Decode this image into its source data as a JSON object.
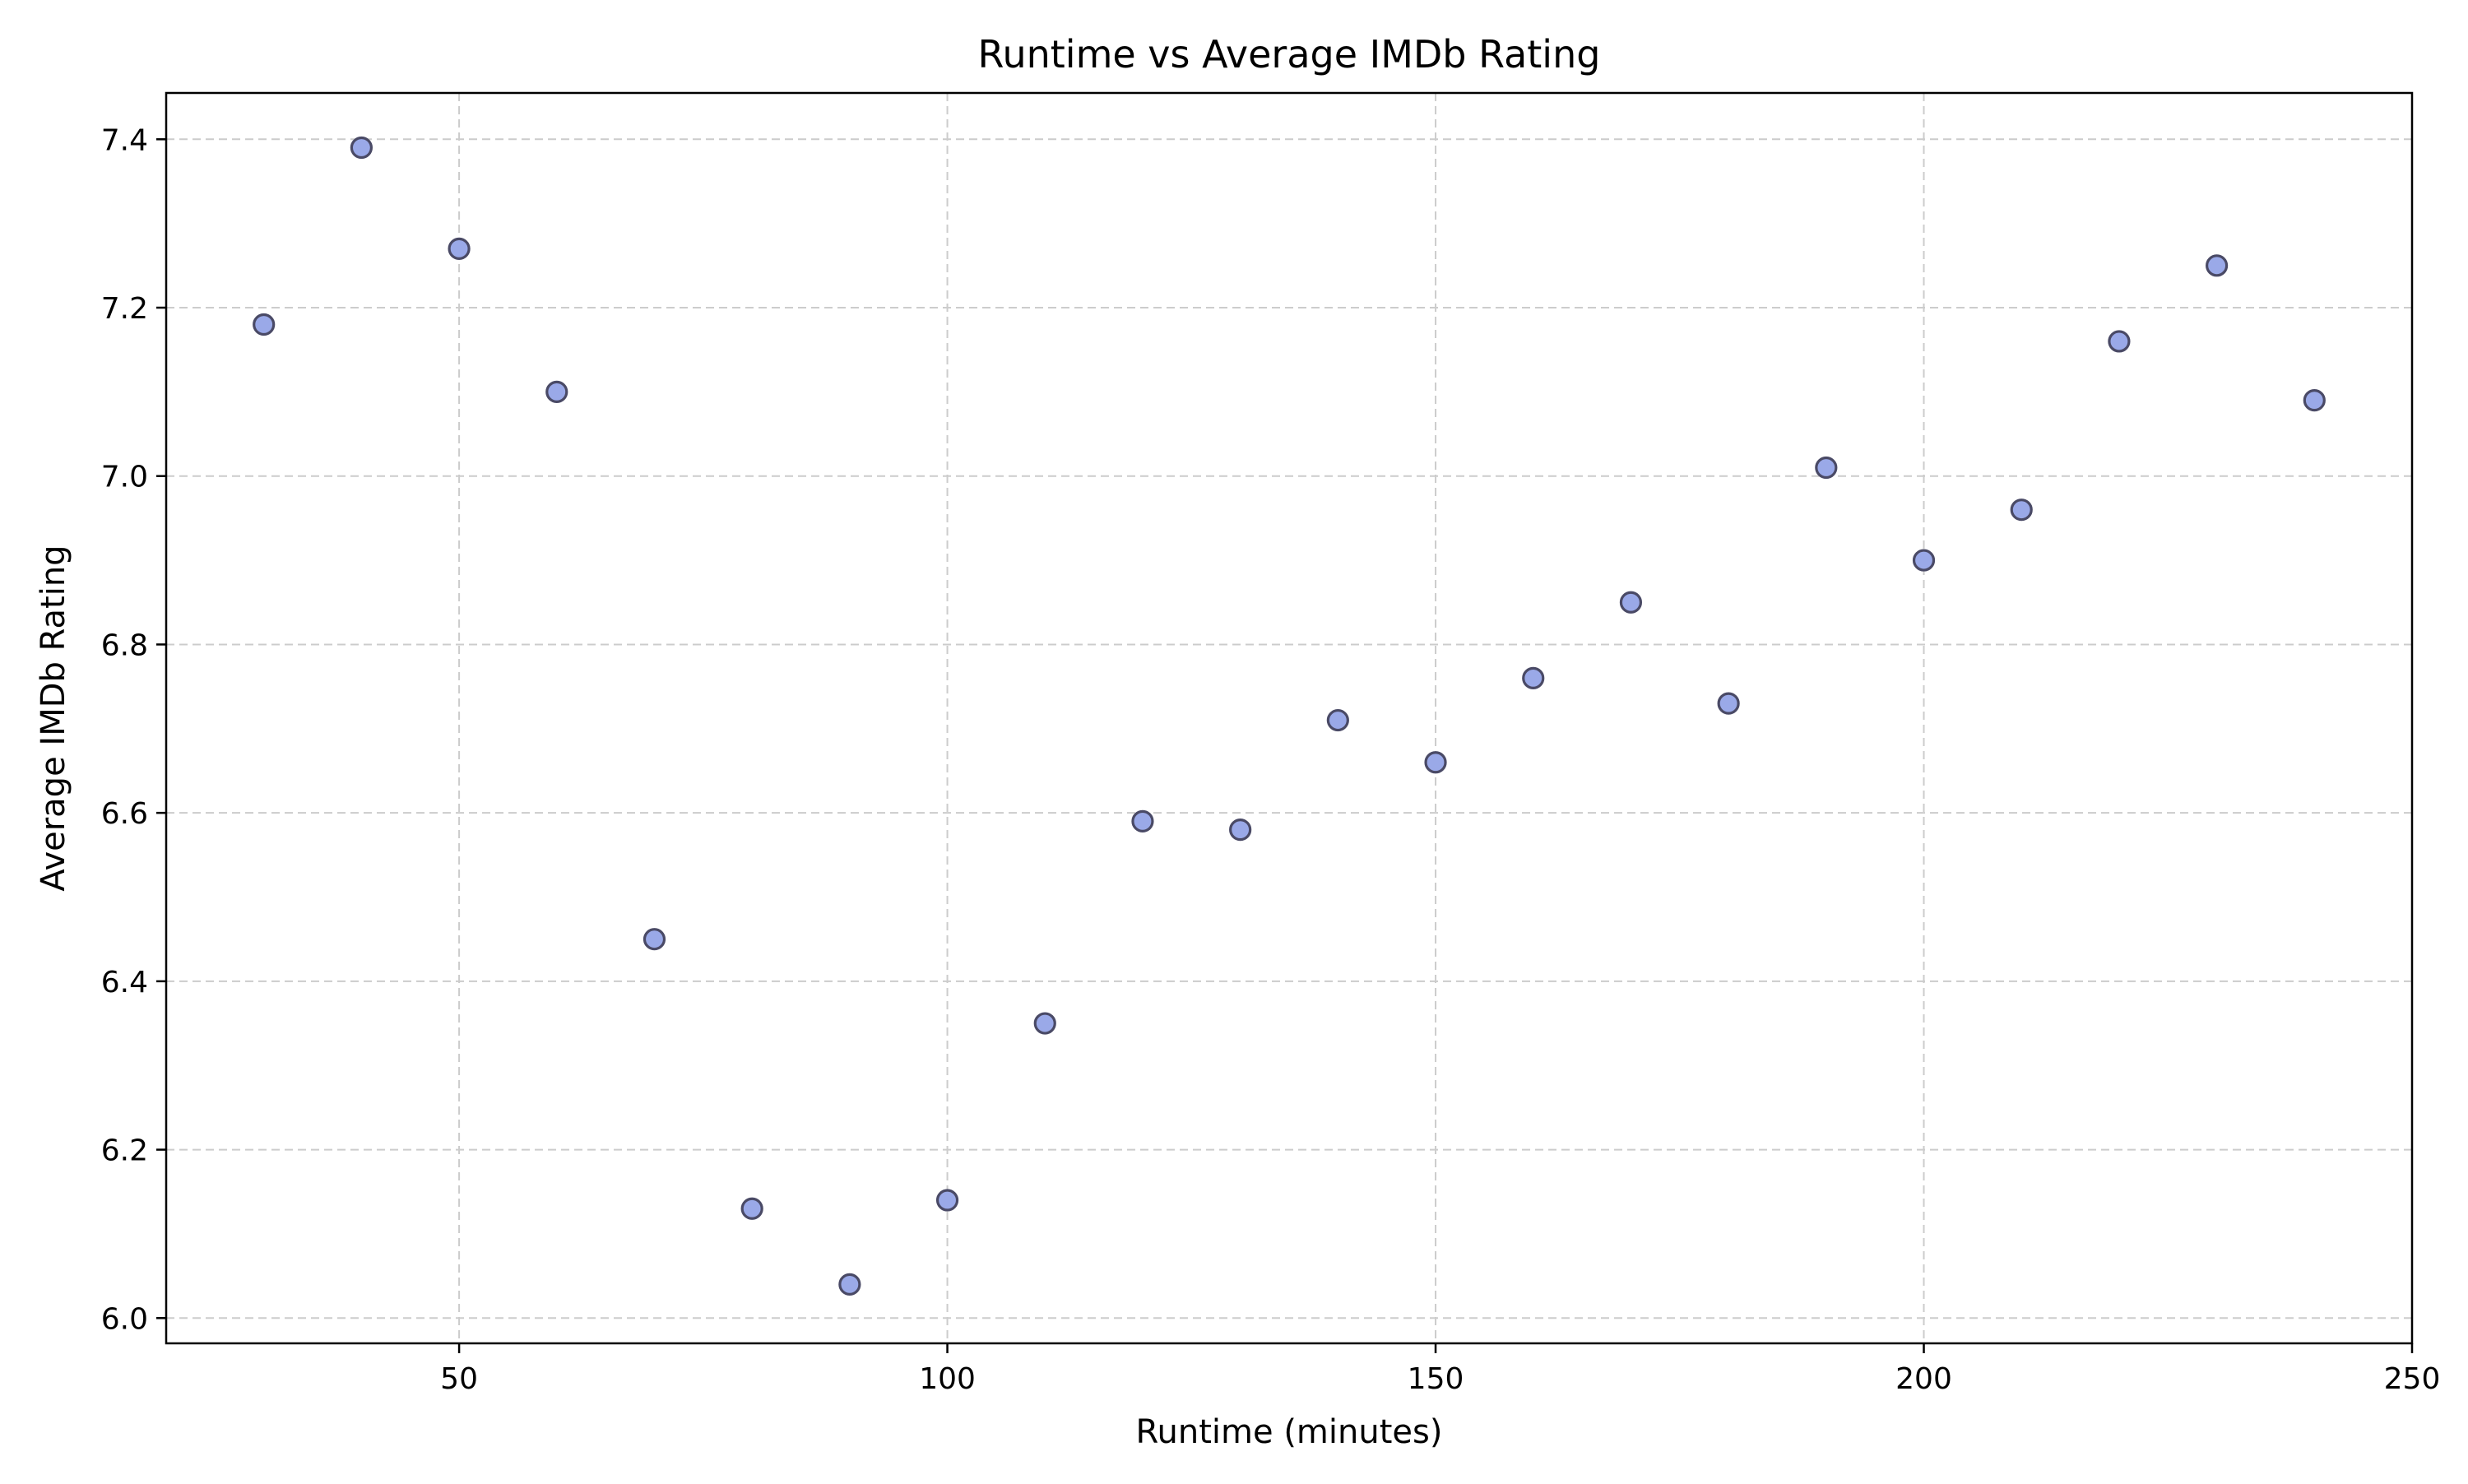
{
  "chart_data": {
    "type": "scatter",
    "title": "Runtime vs Average IMDb Rating",
    "xlabel": "Runtime (minutes)",
    "ylabel": "Average IMDb Rating",
    "xlim": [
      20,
      250
    ],
    "ylim": [
      5.97,
      7.455
    ],
    "xticks": [
      50,
      100,
      150,
      200,
      250
    ],
    "xtick_labels": [
      "50",
      "100",
      "150",
      "200",
      "250"
    ],
    "yticks": [
      6.0,
      6.2,
      6.4,
      6.6,
      6.8,
      7.0,
      7.2,
      7.4
    ],
    "ytick_labels": [
      "6.0",
      "6.2",
      "6.4",
      "6.6",
      "6.8",
      "7.0",
      "7.2",
      "7.4"
    ],
    "grid": true,
    "legend": "none",
    "marker_fill": "#9aa9e8",
    "marker_edge": "#4a4a66",
    "grid_color": "#cccccc",
    "points": [
      {
        "x": 30,
        "y": 7.18
      },
      {
        "x": 40,
        "y": 7.39
      },
      {
        "x": 50,
        "y": 7.27
      },
      {
        "x": 60,
        "y": 7.1
      },
      {
        "x": 70,
        "y": 6.45
      },
      {
        "x": 80,
        "y": 6.13
      },
      {
        "x": 90,
        "y": 6.04
      },
      {
        "x": 100,
        "y": 6.14
      },
      {
        "x": 110,
        "y": 6.35
      },
      {
        "x": 120,
        "y": 6.59
      },
      {
        "x": 130,
        "y": 6.58
      },
      {
        "x": 140,
        "y": 6.71
      },
      {
        "x": 150,
        "y": 6.66
      },
      {
        "x": 160,
        "y": 6.76
      },
      {
        "x": 170,
        "y": 6.85
      },
      {
        "x": 180,
        "y": 6.73
      },
      {
        "x": 190,
        "y": 7.01
      },
      {
        "x": 200,
        "y": 6.9
      },
      {
        "x": 210,
        "y": 6.96
      },
      {
        "x": 220,
        "y": 7.16
      },
      {
        "x": 230,
        "y": 7.25
      },
      {
        "x": 240,
        "y": 7.09
      }
    ]
  }
}
